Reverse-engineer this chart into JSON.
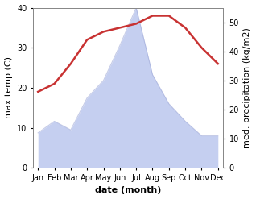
{
  "months": [
    "Jan",
    "Feb",
    "Mar",
    "Apr",
    "May",
    "Jun",
    "Jul",
    "Aug",
    "Sep",
    "Oct",
    "Nov",
    "Dec"
  ],
  "temperature": [
    19,
    21,
    26,
    32,
    34,
    35,
    36,
    38,
    38,
    35,
    30,
    26
  ],
  "precipitation": [
    12,
    16,
    13,
    24,
    30,
    42,
    55,
    32,
    22,
    16,
    11,
    11
  ],
  "temp_color": "#c83232",
  "precip_fill_color": "#c5cff0",
  "precip_edge_color": "#a0aad8",
  "ylabel_left": "max temp (C)",
  "ylabel_right": "med. precipitation (kg/m2)",
  "xlabel": "date (month)",
  "ylim_left": [
    0,
    40
  ],
  "ylim_right": [
    0,
    55
  ],
  "yticks_left": [
    0,
    10,
    20,
    30,
    40
  ],
  "yticks_right": [
    0,
    10,
    20,
    30,
    40,
    50
  ],
  "bg_color": "#ffffff",
  "label_fontsize": 8,
  "tick_fontsize": 7
}
